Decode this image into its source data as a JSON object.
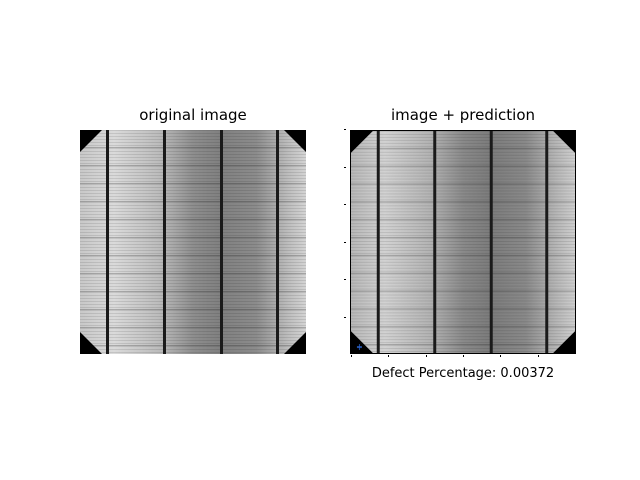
{
  "panels": {
    "left_title": "original image",
    "right_title": "image + prediction"
  },
  "caption": {
    "text": "Defect Percentage: 0.00372"
  },
  "colors": {
    "busbar": "#1a1a1a",
    "corner": "#000000",
    "cell_light": "#d4d4d4",
    "cell_dark": "#7a7a7a"
  }
}
